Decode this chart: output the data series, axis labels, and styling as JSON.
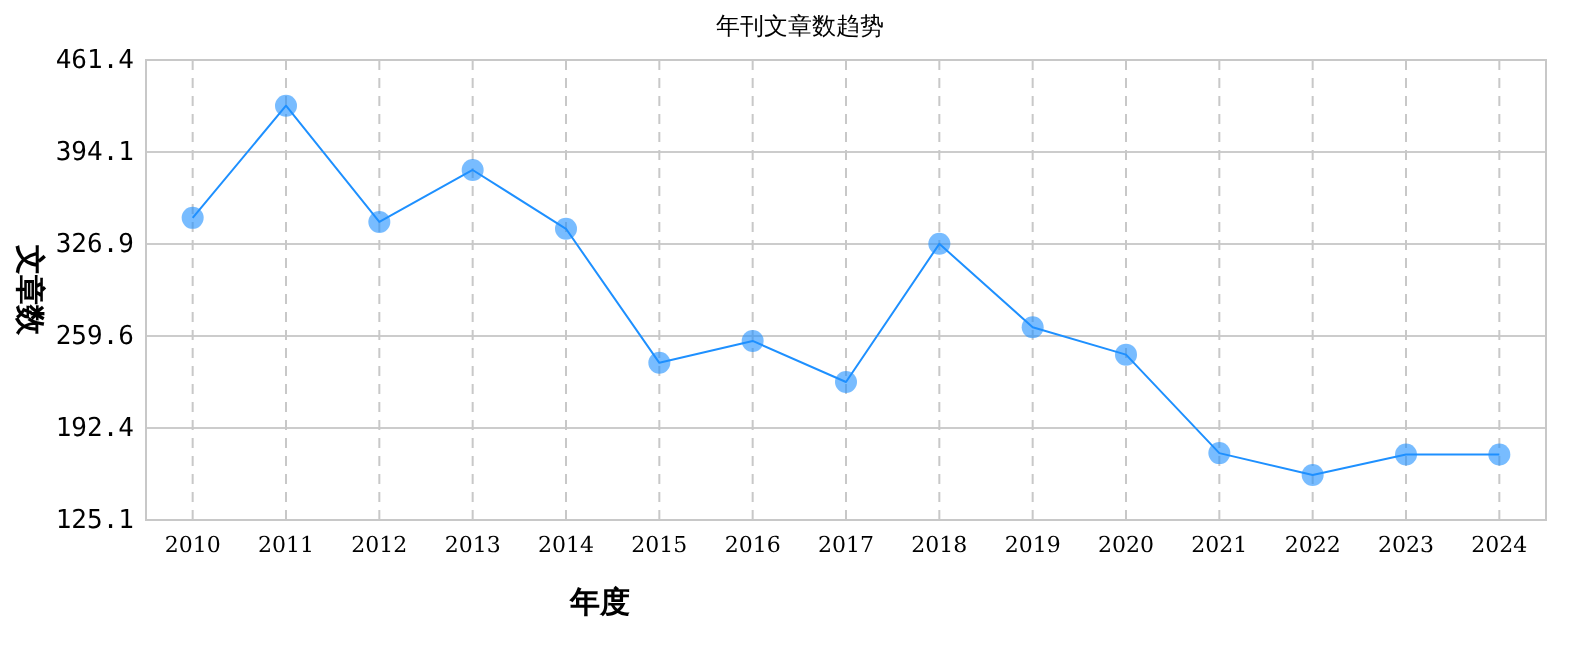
{
  "chart_data": {
    "type": "line",
    "title": "年刊文章数趋势",
    "xlabel": "年度",
    "ylabel": "文章数",
    "categories": [
      "2010",
      "2011",
      "2012",
      "2013",
      "2014",
      "2015",
      "2016",
      "2017",
      "2018",
      "2019",
      "2020",
      "2021",
      "2022",
      "2023",
      "2024"
    ],
    "series": [
      {
        "color": "#1e90ff",
        "values": [
          346,
          428,
          343,
          381,
          338,
          240,
          256,
          226,
          327,
          266,
          246,
          174,
          158,
          173,
          173
        ]
      }
    ],
    "ylim": [
      125.1,
      461.4
    ],
    "yticks": [
      125.1,
      192.4,
      259.6,
      326.9,
      394.1,
      461.4
    ],
    "grid": true,
    "marker": "circle",
    "line_style": "solid"
  }
}
